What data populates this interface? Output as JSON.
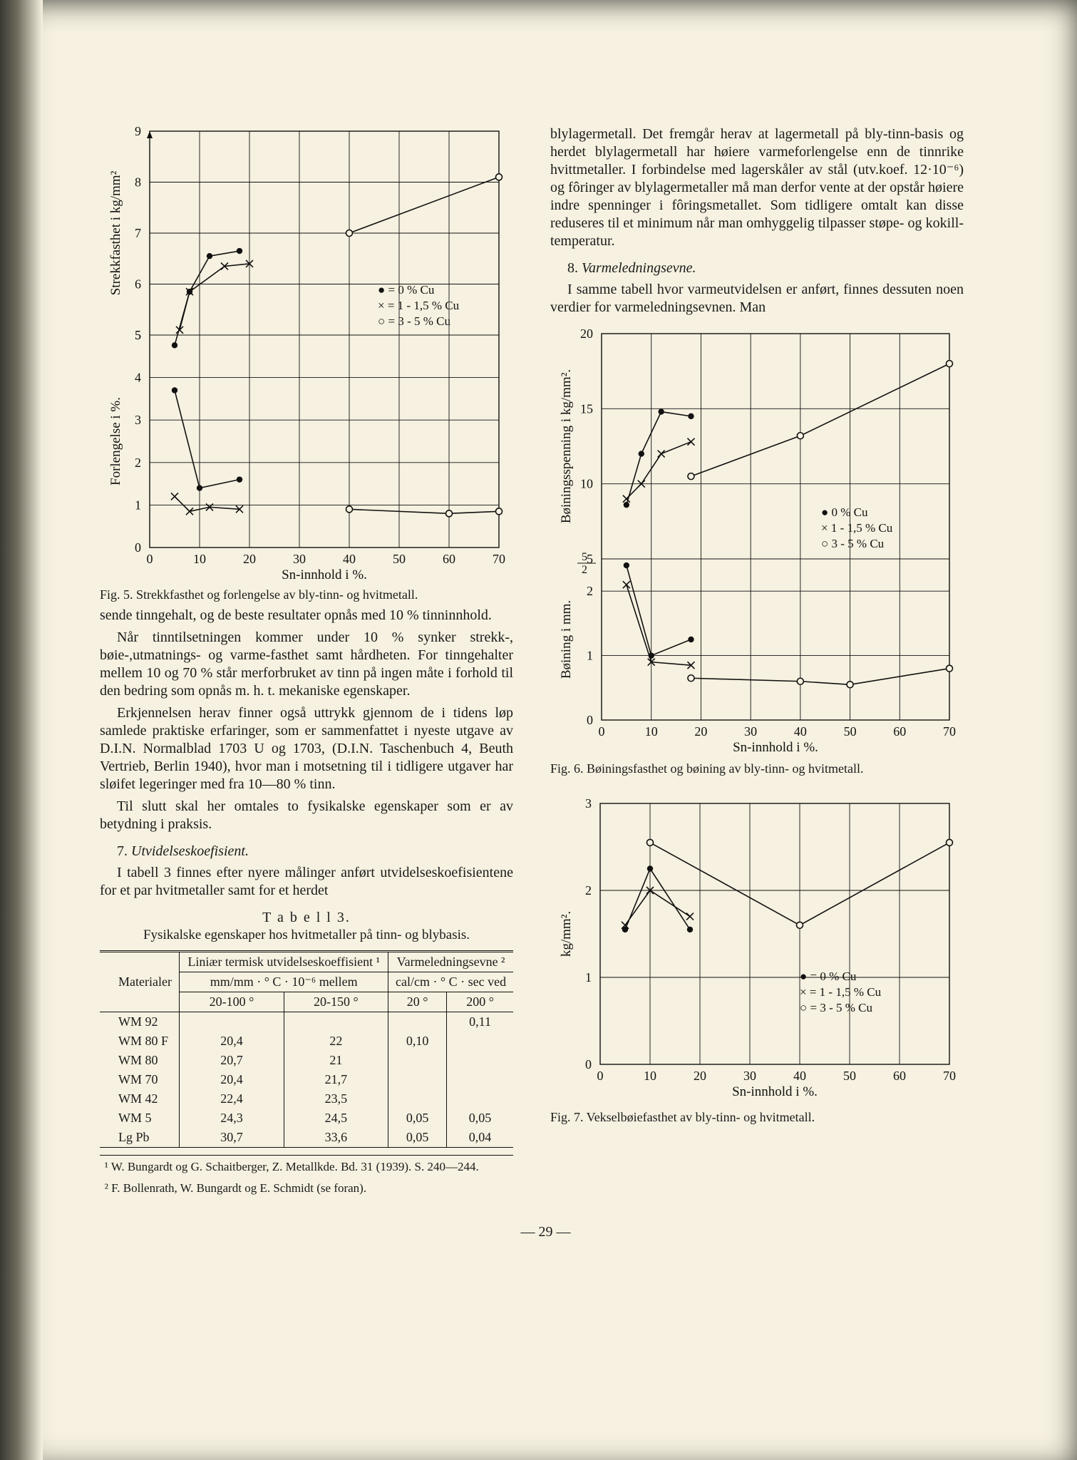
{
  "page_number_label": "— 29 —",
  "left": {
    "fig5": {
      "type": "line",
      "xlim": [
        0,
        70
      ],
      "ylim_top": [
        5,
        9
      ],
      "ylim_bot": [
        0,
        5
      ],
      "xtick": [
        0,
        10,
        20,
        30,
        40,
        50,
        60,
        70
      ],
      "ytick_top": [
        5,
        6,
        7,
        8,
        9
      ],
      "ytick_bot": [
        0,
        1,
        2,
        3,
        4,
        5
      ],
      "xlabel": "Sn-innhold i %.",
      "ylabel_top": "Strekkfasthet i kg/mm²",
      "ylabel_bot": "Forlengelse i %.",
      "legend": [
        "● = 0 % Cu",
        "× = 1 - 1,5 % Cu",
        "○ = 3 - 5 % Cu"
      ],
      "series_top": {
        "dot": {
          "marker": "dot",
          "pts": [
            [
              5,
              4.8
            ],
            [
              8,
              5.85
            ],
            [
              12,
              6.55
            ],
            [
              18,
              6.65
            ]
          ]
        },
        "cross": {
          "marker": "cross",
          "pts": [
            [
              6,
              5.1
            ],
            [
              8,
              5.85
            ],
            [
              15,
              6.35
            ],
            [
              20,
              6.4
            ]
          ]
        },
        "open": {
          "marker": "open",
          "pts": [
            [
              40,
              7.0
            ],
            [
              70,
              8.1
            ]
          ]
        }
      },
      "series_bot": {
        "dot": {
          "marker": "dot",
          "pts": [
            [
              5,
              3.7
            ],
            [
              10,
              1.4
            ],
            [
              18,
              1.6
            ]
          ]
        },
        "cross": {
          "marker": "cross",
          "pts": [
            [
              5,
              1.2
            ],
            [
              8,
              0.85
            ],
            [
              12,
              0.95
            ],
            [
              18,
              0.9
            ]
          ]
        },
        "open": {
          "marker": "open",
          "pts": [
            [
              40,
              0.9
            ],
            [
              60,
              0.8
            ],
            [
              70,
              0.85
            ]
          ]
        }
      },
      "caption": "Fig. 5. Strekkfasthet og forlengelse av bly-tinn- og hvitmetall.",
      "colors": {
        "axis": "#111",
        "grid": "#111",
        "bg": "#f6f1e0"
      }
    },
    "p1": "sende tinngehalt, og de beste resultater opnås med 10 % tinninnhold.",
    "p2": "Når tinntilsetningen kommer under 10 % synker strekk-, bøie-,utmatnings- og varme-fasthet samt hårdheten. For tinngehalter mellem 10 og 70 % står merforbruket av tinn på ingen måte i forhold til den bedring som opnås m. h. t. mekaniske egenskaper.",
    "p3": "Erkjennelsen herav finner også uttrykk gjennom de i tidens løp samlede praktiske erfaringer, som er sammenfattet i nyeste utgave av D.I.N. Normalblad 1703 U og 1703, (D.I.N. Taschenbuch 4, Beuth Vertrieb, Berlin 1940), hvor man i motsetning til i tidligere utgaver har sløifet legeringer med fra 10—80 % tinn.",
    "p4": "Til slutt skal her omtales to fysikalske egenskaper som er av betydning i praksis.",
    "s7_num": "7.",
    "s7_title": "Utvidelseskoefisient.",
    "p5": "I tabell 3 finnes efter nyere målinger anført utvidelseskoefisientene for et par hvitmetaller samt for et herdet",
    "t3_head": "T a b e l l  3.",
    "t3_sub": "Fysikalske egenskaper hos hvitmetaller på tinn- og blybasis.",
    "table": {
      "col0": "Materialer",
      "grp1": "Liniær termisk utvidelseskoeffisient ¹",
      "grp2": "Varme­ledningsevne ²",
      "sub1": "mm/mm · ° C · 10⁻⁶ mellem",
      "sub2": "cal/cm · ° C · sec ved",
      "h1": "20-100 °",
      "h2": "20-150 °",
      "h3": "20 °",
      "h4": "200 °",
      "rows": [
        [
          "WM 92",
          "",
          "",
          "",
          "0,11"
        ],
        [
          "WM 80 F",
          "20,4",
          "22",
          "0,10",
          ""
        ],
        [
          "WM 80",
          "20,7",
          "21",
          "",
          ""
        ],
        [
          "WM 70",
          "20,4",
          "21,7",
          "",
          ""
        ],
        [
          "WM 42",
          "22,4",
          "23,5",
          "",
          ""
        ],
        [
          "WM 5",
          "24,3",
          "24,5",
          "0,05",
          "0,05"
        ],
        [
          "Lg Pb",
          "30,7",
          "33,6",
          "0,05",
          "0,04"
        ]
      ]
    },
    "fn1": "¹ W. Bungardt og G. Schaitberger, Z. Metallkde. Bd. 31 (1939). S. 240—244.",
    "fn2": "² F. Bollenrath, W. Bungardt og E. Schmidt (se foran)."
  },
  "right": {
    "p1": "blylagermetall. Det fremgår herav at lagermetall på bly-tinn-basis og herdet blylagermetall har høiere varmeforlengelse enn de tinnrike hvittmetaller. I forbindelse med lagerskåler av stål (utv.koef. 12·10⁻⁶) og fôringer av blylagermetaller må man derfor vente at der opstår høiere indre spenninger i fôringsmetallet. Som tidligere omtalt kan disse reduseres til et minimum når man omhyggelig tilpasser støpe- og kokill-temperatur.",
    "s8_num": "8.",
    "s8_title": "Varmeledningsevne.",
    "p2": "I samme tabell hvor varmeutvidelsen er anført, finnes dessuten noen verdier for varmeledningsevnen.  Man",
    "fig6": {
      "type": "line",
      "xlim": [
        0,
        70
      ],
      "ylim_top": [
        5,
        20
      ],
      "ylim_bot": [
        0,
        2.5
      ],
      "xtick": [
        0,
        10,
        20,
        30,
        40,
        50,
        60,
        70
      ],
      "ytick_top": [
        5,
        10,
        15,
        20
      ],
      "ytick_bot": [
        0,
        1,
        2
      ],
      "xlabel": "Sn-innhold i %.",
      "ylabel_top": "Bøiningsspenning i kg/mm².",
      "ylabel_bot": "Bøining i mm.",
      "legend": [
        "● 0 % Cu",
        "× 1 - 1,5 % Cu",
        "○ 3 - 5 % Cu"
      ],
      "series_top": {
        "dot": {
          "marker": "dot",
          "pts": [
            [
              5,
              8.6
            ],
            [
              8,
              12.0
            ],
            [
              12,
              14.8
            ],
            [
              18,
              14.5
            ]
          ]
        },
        "cross": {
          "marker": "cross",
          "pts": [
            [
              5,
              9.0
            ],
            [
              8,
              10.0
            ],
            [
              12,
              12.0
            ],
            [
              18,
              12.8
            ]
          ]
        },
        "open": {
          "marker": "open",
          "pts": [
            [
              18,
              10.5
            ],
            [
              40,
              13.2
            ],
            [
              70,
              18.0
            ]
          ]
        }
      },
      "series_bot": {
        "dot": {
          "marker": "dot",
          "pts": [
            [
              5,
              2.4
            ],
            [
              10,
              1.0
            ],
            [
              18,
              1.25
            ]
          ]
        },
        "cross": {
          "marker": "cross",
          "pts": [
            [
              5,
              2.1
            ],
            [
              10,
              0.9
            ],
            [
              18,
              0.85
            ]
          ]
        },
        "open": {
          "marker": "open",
          "pts": [
            [
              18,
              0.65
            ],
            [
              40,
              0.6
            ],
            [
              50,
              0.55
            ],
            [
              70,
              0.8
            ]
          ]
        }
      },
      "caption": "Fig. 6. Bøiningsfasthet og bøining av bly-tinn- og hvitmetall."
    },
    "fig7": {
      "type": "line",
      "xlim": [
        0,
        70
      ],
      "ylim": [
        0,
        3
      ],
      "xtick": [
        0,
        10,
        20,
        30,
        40,
        50,
        60,
        70
      ],
      "ytick": [
        0,
        1,
        2,
        3
      ],
      "xlabel": "Sn-innhold i %.",
      "ylabel": "kg/mm².",
      "legend": [
        "● = 0 % Cu",
        "× = 1 - 1,5 % Cu",
        "○ = 3 - 5 % Cu"
      ],
      "series": {
        "dot": {
          "marker": "dot",
          "pts": [
            [
              5,
              1.55
            ],
            [
              10,
              2.25
            ],
            [
              18,
              1.55
            ]
          ]
        },
        "cross": {
          "marker": "cross",
          "pts": [
            [
              5,
              1.6
            ],
            [
              10,
              2.0
            ],
            [
              18,
              1.7
            ]
          ]
        },
        "open": {
          "marker": "open",
          "pts": [
            [
              10,
              2.55
            ],
            [
              40,
              1.6
            ],
            [
              70,
              2.55
            ]
          ]
        }
      },
      "caption": "Fig. 7. Vekselbøiefasthet av bly-tinn- og hvitmetall."
    }
  }
}
